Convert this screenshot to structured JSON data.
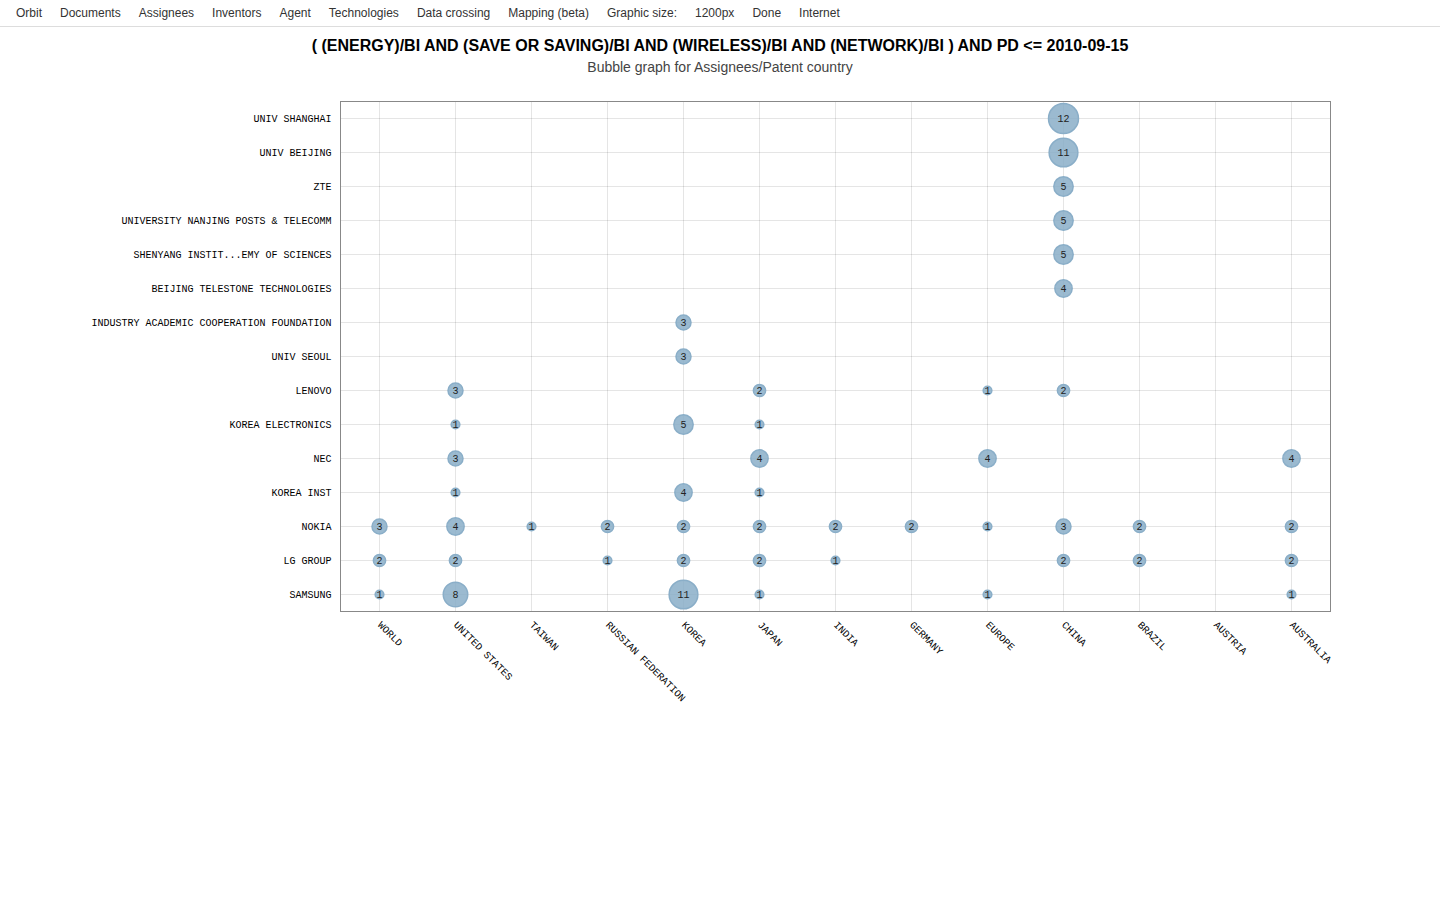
{
  "chart_data": {
    "type": "bubble",
    "title": "( (ENERGY)/BI AND (SAVE OR SAVING)/BI AND (WIRELESS)/BI AND (NETWORK)/BI ) AND PD <= 2010-09-15",
    "subtitle": "Bubble graph for Assignees/Patent country",
    "annotations": [
      "Orbit",
      "Documents",
      "Assignees",
      "Inventors",
      "Agent",
      "Technologies",
      "Data crossing",
      "Mapping (beta)",
      "Graphic size:",
      "1200px",
      "Done",
      "Internet"
    ],
    "x_categories": [
      "WORLD",
      "UNITED STATES",
      "TAIWAN",
      "RUSSIAN FEDERATION",
      "KOREA",
      "JAPAN",
      "INDIA",
      "GERMANY",
      "EUROPE",
      "CHINA",
      "BRAZIL",
      "AUSTRIA",
      "AUSTRALIA"
    ],
    "y_categories": [
      "SAMSUNG",
      "LG GROUP",
      "NOKIA",
      "KOREA INST",
      "NEC",
      "KOREA ELECTRONICS",
      "LENOVO",
      "UNIV SEOUL",
      "INDUSTRY ACADEMIC COOPERATION FOUNDATION",
      "BEIJING TELESTONE TECHNOLOGIES",
      "SHENYANG INSTIT...EMY OF SCIENCES",
      "UNIVERSITY NANJING POSTS & TELECOMM",
      "ZTE",
      "UNIV BEIJING",
      "UNIV SHANGHAI"
    ],
    "points": [
      {
        "y": "UNIV SHANGHAI",
        "x": "CHINA",
        "value": 12
      },
      {
        "y": "UNIV BEIJING",
        "x": "CHINA",
        "value": 11
      },
      {
        "y": "ZTE",
        "x": "CHINA",
        "value": 5
      },
      {
        "y": "UNIVERSITY NANJING POSTS & TELECOMM",
        "x": "CHINA",
        "value": 5
      },
      {
        "y": "SHENYANG INSTIT...EMY OF SCIENCES",
        "x": "CHINA",
        "value": 5
      },
      {
        "y": "BEIJING TELESTONE TECHNOLOGIES",
        "x": "CHINA",
        "value": 4
      },
      {
        "y": "INDUSTRY ACADEMIC COOPERATION FOUNDATION",
        "x": "KOREA",
        "value": 3
      },
      {
        "y": "UNIV SEOUL",
        "x": "KOREA",
        "value": 3
      },
      {
        "y": "LENOVO",
        "x": "UNITED STATES",
        "value": 3
      },
      {
        "y": "LENOVO",
        "x": "JAPAN",
        "value": 2
      },
      {
        "y": "LENOVO",
        "x": "EUROPE",
        "value": 1
      },
      {
        "y": "LENOVO",
        "x": "CHINA",
        "value": 2
      },
      {
        "y": "KOREA ELECTRONICS",
        "x": "UNITED STATES",
        "value": 1
      },
      {
        "y": "KOREA ELECTRONICS",
        "x": "KOREA",
        "value": 5
      },
      {
        "y": "KOREA ELECTRONICS",
        "x": "JAPAN",
        "value": 1
      },
      {
        "y": "NEC",
        "x": "UNITED STATES",
        "value": 3
      },
      {
        "y": "NEC",
        "x": "JAPAN",
        "value": 4
      },
      {
        "y": "NEC",
        "x": "EUROPE",
        "value": 4
      },
      {
        "y": "NEC",
        "x": "AUSTRALIA",
        "value": 4
      },
      {
        "y": "KOREA INST",
        "x": "UNITED STATES",
        "value": 1
      },
      {
        "y": "KOREA INST",
        "x": "KOREA",
        "value": 4
      },
      {
        "y": "KOREA INST",
        "x": "JAPAN",
        "value": 1
      },
      {
        "y": "NOKIA",
        "x": "WORLD",
        "value": 3
      },
      {
        "y": "NOKIA",
        "x": "UNITED STATES",
        "value": 4
      },
      {
        "y": "NOKIA",
        "x": "TAIWAN",
        "value": 1
      },
      {
        "y": "NOKIA",
        "x": "RUSSIAN FEDERATION",
        "value": 2
      },
      {
        "y": "NOKIA",
        "x": "KOREA",
        "value": 2
      },
      {
        "y": "NOKIA",
        "x": "JAPAN",
        "value": 2
      },
      {
        "y": "NOKIA",
        "x": "INDIA",
        "value": 2
      },
      {
        "y": "NOKIA",
        "x": "GERMANY",
        "value": 2
      },
      {
        "y": "NOKIA",
        "x": "EUROPE",
        "value": 1
      },
      {
        "y": "NOKIA",
        "x": "CHINA",
        "value": 3
      },
      {
        "y": "NOKIA",
        "x": "BRAZIL",
        "value": 2
      },
      {
        "y": "NOKIA",
        "x": "AUSTRALIA",
        "value": 2
      },
      {
        "y": "LG GROUP",
        "x": "WORLD",
        "value": 2
      },
      {
        "y": "LG GROUP",
        "x": "UNITED STATES",
        "value": 2
      },
      {
        "y": "LG GROUP",
        "x": "RUSSIAN FEDERATION",
        "value": 1
      },
      {
        "y": "LG GROUP",
        "x": "KOREA",
        "value": 2
      },
      {
        "y": "LG GROUP",
        "x": "JAPAN",
        "value": 2
      },
      {
        "y": "LG GROUP",
        "x": "INDIA",
        "value": 1
      },
      {
        "y": "LG GROUP",
        "x": "CHINA",
        "value": 2
      },
      {
        "y": "LG GROUP",
        "x": "BRAZIL",
        "value": 2
      },
      {
        "y": "LG GROUP",
        "x": "AUSTRALIA",
        "value": 2
      },
      {
        "y": "SAMSUNG",
        "x": "WORLD",
        "value": 1
      },
      {
        "y": "SAMSUNG",
        "x": "UNITED STATES",
        "value": 8
      },
      {
        "y": "SAMSUNG",
        "x": "KOREA",
        "value": 11
      },
      {
        "y": "SAMSUNG",
        "x": "JAPAN",
        "value": 1
      },
      {
        "y": "SAMSUNG",
        "x": "EUROPE",
        "value": 1
      },
      {
        "y": "SAMSUNG",
        "x": "AUSTRALIA",
        "value": 1
      }
    ],
    "color": "#8aaec8",
    "grid": true,
    "data_labels": true
  }
}
